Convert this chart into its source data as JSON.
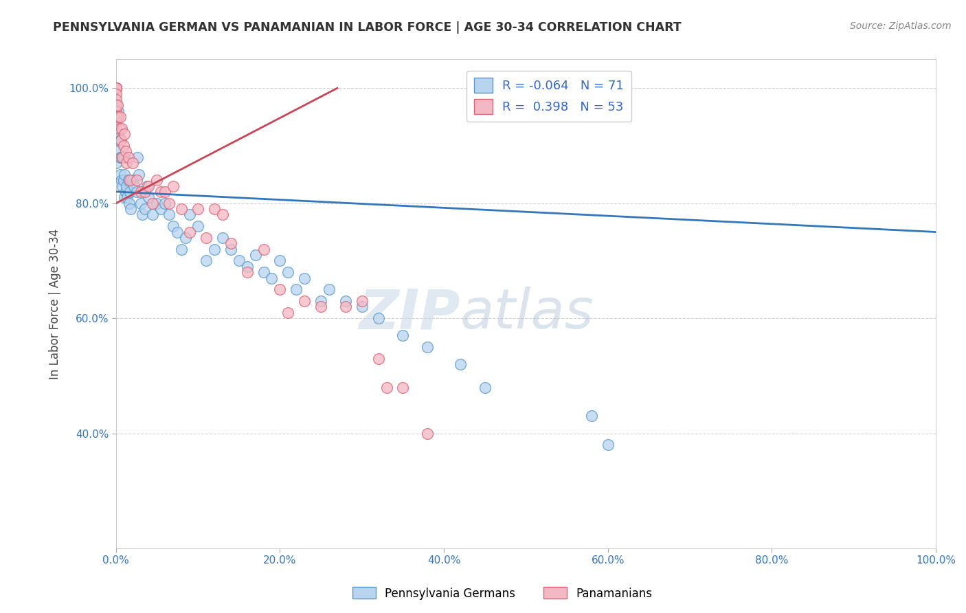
{
  "title": "PENNSYLVANIA GERMAN VS PANAMANIAN IN LABOR FORCE | AGE 30-34 CORRELATION CHART",
  "source": "Source: ZipAtlas.com",
  "ylabel": "In Labor Force | Age 30-34",
  "xlim": [
    0.0,
    1.0
  ],
  "ylim": [
    0.2,
    1.05
  ],
  "xticks": [
    0.0,
    0.2,
    0.4,
    0.6,
    0.8,
    1.0
  ],
  "yticks": [
    0.4,
    0.6,
    0.8,
    1.0
  ],
  "xtick_labels": [
    "0.0%",
    "20.0%",
    "40.0%",
    "60.0%",
    "80.0%",
    "100.0%"
  ],
  "ytick_labels": [
    "40.0%",
    "60.0%",
    "80.0%",
    "100.0%"
  ],
  "blue_R": -0.064,
  "blue_N": 71,
  "pink_R": 0.398,
  "pink_N": 53,
  "blue_color": "#b8d4ee",
  "pink_color": "#f4b8c4",
  "blue_edge_color": "#5599cc",
  "pink_edge_color": "#e06070",
  "blue_line_color": "#3377bb",
  "pink_line_color": "#cc4455",
  "watermark_zip": "ZIP",
  "watermark_atlas": "atlas",
  "blue_line_x0": 0.0,
  "blue_line_x1": 1.0,
  "blue_line_y0": 0.82,
  "blue_line_y1": 0.75,
  "pink_line_x0": 0.0,
  "pink_line_x1": 0.27,
  "pink_line_y0": 0.8,
  "pink_line_y1": 1.0,
  "blue_x": [
    0.0,
    0.0,
    0.0,
    0.0,
    0.0,
    0.0,
    0.0,
    0.003,
    0.003,
    0.005,
    0.005,
    0.005,
    0.007,
    0.007,
    0.008,
    0.009,
    0.01,
    0.01,
    0.01,
    0.012,
    0.013,
    0.014,
    0.015,
    0.016,
    0.017,
    0.018,
    0.02,
    0.022,
    0.025,
    0.026,
    0.028,
    0.03,
    0.032,
    0.035,
    0.038,
    0.04,
    0.045,
    0.05,
    0.055,
    0.06,
    0.065,
    0.07,
    0.075,
    0.08,
    0.085,
    0.09,
    0.1,
    0.11,
    0.12,
    0.13,
    0.14,
    0.15,
    0.16,
    0.17,
    0.18,
    0.19,
    0.2,
    0.21,
    0.22,
    0.23,
    0.25,
    0.26,
    0.28,
    0.3,
    0.32,
    0.35,
    0.38,
    0.42,
    0.45,
    0.58,
    0.6
  ],
  "blue_y": [
    0.97,
    0.96,
    0.95,
    0.93,
    0.91,
    0.89,
    0.87,
    0.96,
    0.92,
    0.91,
    0.88,
    0.85,
    0.88,
    0.84,
    0.83,
    0.84,
    0.88,
    0.85,
    0.81,
    0.82,
    0.83,
    0.81,
    0.84,
    0.8,
    0.82,
    0.79,
    0.84,
    0.83,
    0.82,
    0.88,
    0.85,
    0.8,
    0.78,
    0.79,
    0.83,
    0.81,
    0.78,
    0.8,
    0.79,
    0.8,
    0.78,
    0.76,
    0.75,
    0.72,
    0.74,
    0.78,
    0.76,
    0.7,
    0.72,
    0.74,
    0.72,
    0.7,
    0.69,
    0.71,
    0.68,
    0.67,
    0.7,
    0.68,
    0.65,
    0.67,
    0.63,
    0.65,
    0.63,
    0.62,
    0.6,
    0.57,
    0.55,
    0.52,
    0.48,
    0.43,
    0.38
  ],
  "pink_x": [
    0.0,
    0.0,
    0.0,
    0.0,
    0.0,
    0.0,
    0.0,
    0.0,
    0.0,
    0.0,
    0.002,
    0.003,
    0.004,
    0.005,
    0.006,
    0.007,
    0.008,
    0.009,
    0.01,
    0.012,
    0.013,
    0.015,
    0.017,
    0.02,
    0.025,
    0.03,
    0.035,
    0.04,
    0.045,
    0.05,
    0.055,
    0.06,
    0.065,
    0.07,
    0.08,
    0.09,
    0.1,
    0.11,
    0.12,
    0.13,
    0.14,
    0.16,
    0.18,
    0.2,
    0.21,
    0.23,
    0.25,
    0.28,
    0.3,
    0.32,
    0.33,
    0.35,
    0.38
  ],
  "pink_y": [
    1.0,
    1.0,
    1.0,
    1.0,
    0.99,
    0.98,
    0.97,
    0.96,
    0.95,
    0.94,
    0.97,
    0.95,
    0.93,
    0.95,
    0.91,
    0.93,
    0.88,
    0.9,
    0.92,
    0.89,
    0.87,
    0.88,
    0.84,
    0.87,
    0.84,
    0.82,
    0.82,
    0.83,
    0.8,
    0.84,
    0.82,
    0.82,
    0.8,
    0.83,
    0.79,
    0.75,
    0.79,
    0.74,
    0.79,
    0.78,
    0.73,
    0.68,
    0.72,
    0.65,
    0.61,
    0.63,
    0.62,
    0.62,
    0.63,
    0.53,
    0.48,
    0.48,
    0.4
  ]
}
